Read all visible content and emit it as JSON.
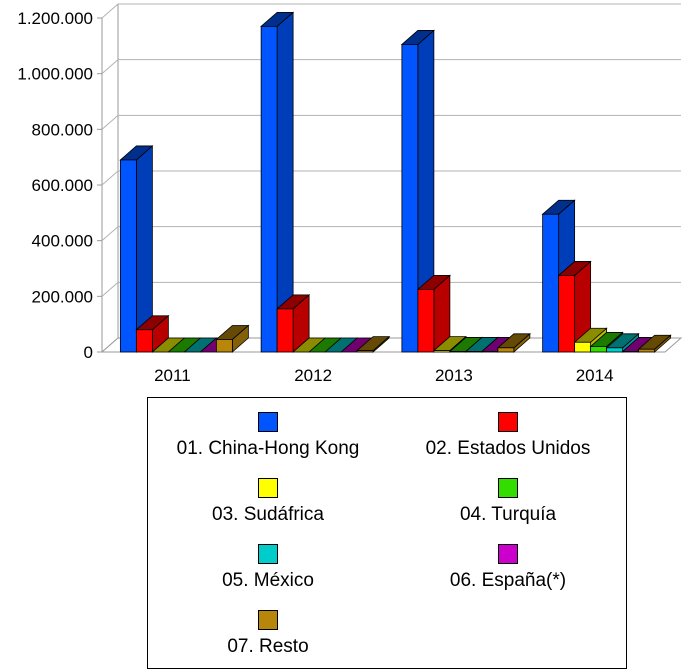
{
  "chart_data": {
    "type": "bar",
    "title": "",
    "xlabel": "",
    "ylabel": "",
    "ylim": [
      0,
      1200000
    ],
    "yticks": [
      0,
      200000,
      400000,
      600000,
      800000,
      1000000,
      1200000
    ],
    "ytick_labels": [
      "0",
      "200.000",
      "400.000",
      "600.000",
      "800.000",
      "1.000.000",
      "1.200.000"
    ],
    "categories": [
      "2011",
      "2012",
      "2013",
      "2014"
    ],
    "grid": true,
    "legend_position": "bottom",
    "series": [
      {
        "name": "01. China-Hong Kong",
        "color": "#0055ff",
        "values": [
          690000,
          1170000,
          1105000,
          495000
        ]
      },
      {
        "name": "02. Estados Unidos",
        "color": "#ff0000",
        "values": [
          80000,
          155000,
          225000,
          275000
        ]
      },
      {
        "name": "03. Sudáfrica",
        "color": "#ffff00",
        "values": [
          0,
          0,
          5000,
          35000
        ]
      },
      {
        "name": "04. Turquía",
        "color": "#33dd00",
        "values": [
          0,
          0,
          2000,
          20000
        ]
      },
      {
        "name": "05. México",
        "color": "#00cccc",
        "values": [
          0,
          0,
          2000,
          15000
        ]
      },
      {
        "name": "06. España(*)",
        "color": "#cc00cc",
        "values": [
          0,
          0,
          2000,
          2000
        ]
      },
      {
        "name": "07. Resto",
        "color": "#b8860b",
        "values": [
          45000,
          5000,
          15000,
          10000
        ]
      }
    ]
  }
}
